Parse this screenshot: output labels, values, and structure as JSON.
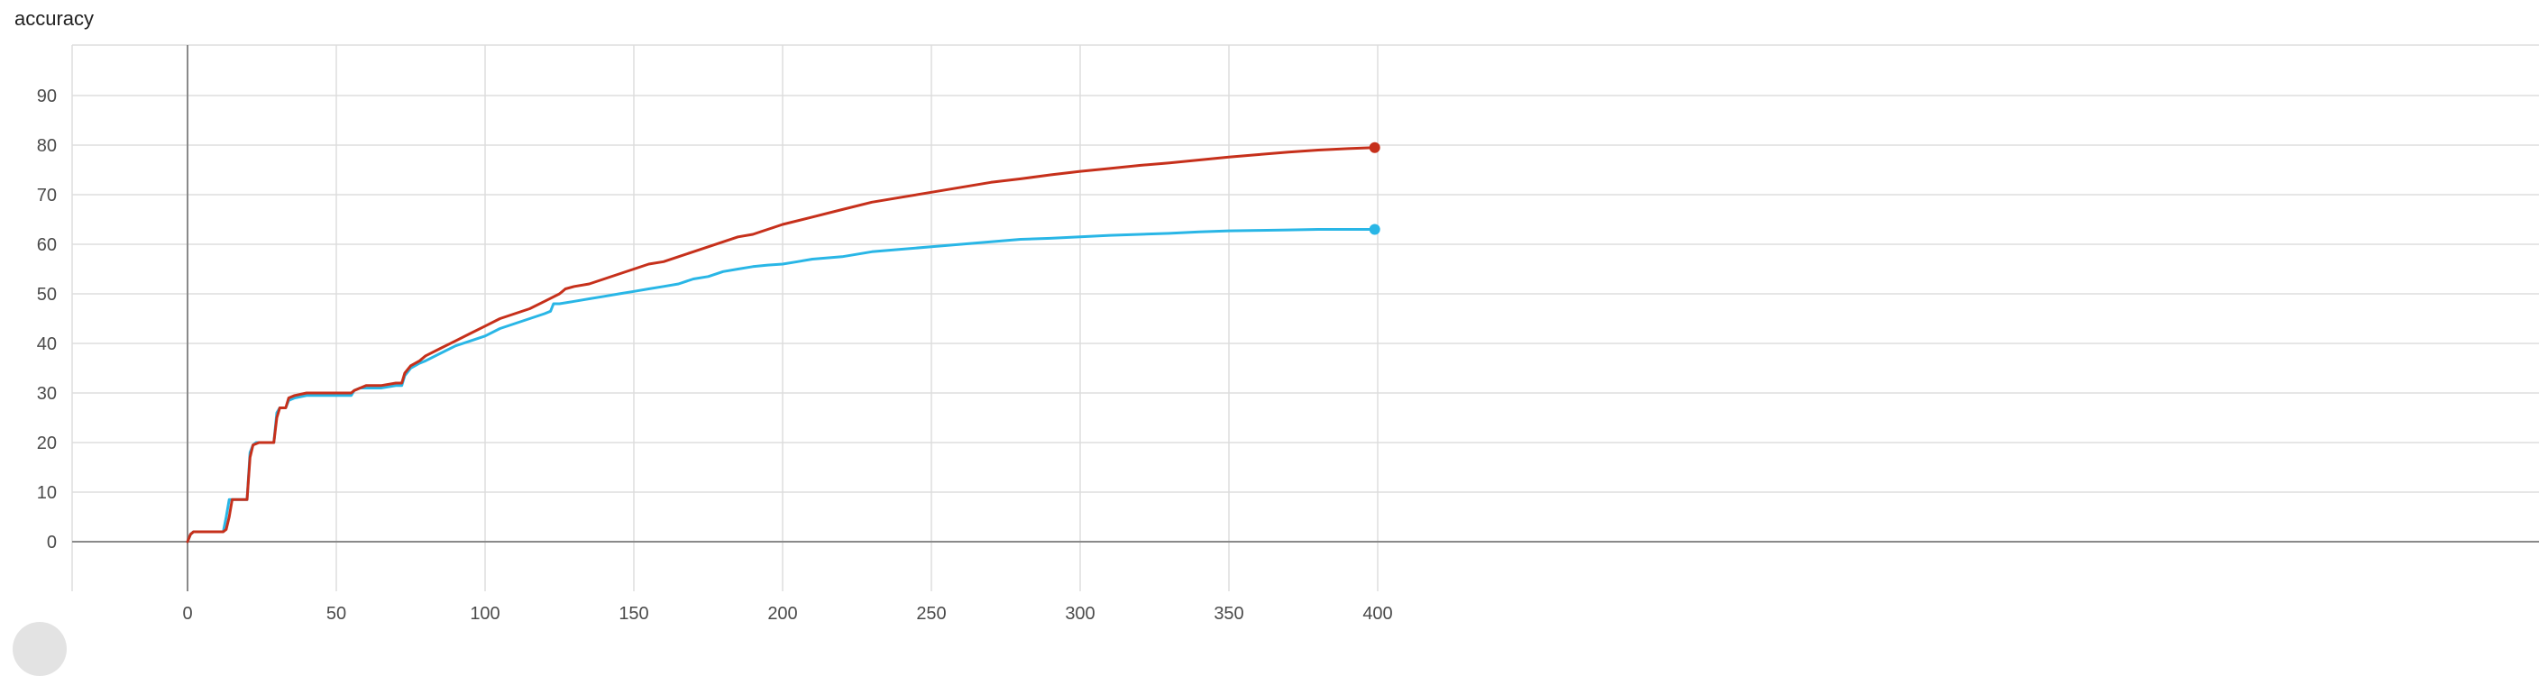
{
  "chart_data": {
    "type": "line",
    "title": "accuracy",
    "xlabel": "",
    "ylabel": "",
    "xlim": [
      -50,
      400
    ],
    "ylim": [
      -10,
      100
    ],
    "x_ticks": [
      0,
      50,
      100,
      150,
      200,
      250,
      300,
      350,
      400
    ],
    "y_ticks": [
      0,
      10,
      20,
      30,
      40,
      50,
      60,
      70,
      80,
      90
    ],
    "grid": true,
    "legend": "none",
    "series": [
      {
        "color": "#29b6e6",
        "x": [
          0,
          1,
          2,
          12,
          13,
          14,
          15,
          20,
          21,
          22,
          23,
          29,
          30,
          31,
          32,
          33,
          34,
          36,
          40,
          50,
          55,
          56,
          58,
          60,
          65,
          70,
          72,
          73,
          75,
          78,
          80,
          85,
          90,
          95,
          100,
          105,
          110,
          115,
          120,
          122,
          123,
          125,
          130,
          135,
          140,
          145,
          150,
          155,
          160,
          165,
          170,
          175,
          180,
          185,
          190,
          195,
          200,
          205,
          210,
          220,
          230,
          240,
          250,
          260,
          270,
          280,
          290,
          300,
          310,
          320,
          330,
          340,
          350,
          360,
          370,
          380,
          390,
          399
        ],
        "y": [
          0,
          1.5,
          2,
          2,
          5,
          8.5,
          8.5,
          8.5,
          18,
          19.5,
          20,
          20,
          26,
          27,
          27,
          27,
          28.5,
          29,
          29.5,
          29.5,
          29.5,
          30.5,
          31,
          31,
          31,
          31.5,
          31.5,
          33.5,
          35,
          36,
          36.5,
          38,
          39.5,
          40.5,
          41.5,
          43,
          44,
          45,
          46,
          46.5,
          48,
          48,
          48.5,
          49,
          49.5,
          50,
          50.5,
          51,
          51.5,
          52,
          53,
          53.5,
          54.5,
          55,
          55.5,
          55.8,
          56,
          56.5,
          57,
          57.5,
          58.5,
          59,
          59.5,
          60,
          60.5,
          61,
          61.2,
          61.5,
          61.8,
          62,
          62.2,
          62.5,
          62.7,
          62.8,
          62.9,
          63,
          63,
          63
        ]
      },
      {
        "color": "#c6301b",
        "x": [
          0,
          1,
          2,
          12,
          13,
          14,
          15,
          20,
          21,
          22,
          24,
          29,
          30,
          31,
          32,
          33,
          34,
          36,
          40,
          50,
          55,
          56,
          58,
          60,
          65,
          70,
          72,
          73,
          75,
          78,
          80,
          85,
          90,
          95,
          100,
          105,
          110,
          115,
          120,
          125,
          126,
          127,
          130,
          135,
          140,
          145,
          150,
          155,
          160,
          165,
          170,
          175,
          180,
          185,
          190,
          195,
          200,
          210,
          220,
          230,
          240,
          250,
          260,
          270,
          280,
          290,
          300,
          310,
          320,
          330,
          340,
          350,
          360,
          370,
          380,
          390,
          399
        ],
        "y": [
          0,
          1.5,
          2,
          2,
          2.5,
          5,
          8.5,
          8.5,
          17,
          19.5,
          20,
          20,
          25,
          27,
          27,
          27,
          29,
          29.5,
          30,
          30,
          30,
          30.5,
          31,
          31.5,
          31.5,
          32,
          32,
          34,
          35.5,
          36.5,
          37.5,
          39,
          40.5,
          42,
          43.5,
          45,
          46,
          47,
          48.5,
          50,
          50.5,
          51,
          51.5,
          52,
          53,
          54,
          55,
          56,
          56.5,
          57.5,
          58.5,
          59.5,
          60.5,
          61.5,
          62,
          63,
          64,
          65.5,
          67,
          68.5,
          69.5,
          70.5,
          71.5,
          72.5,
          73.2,
          74,
          74.7,
          75.3,
          75.9,
          76.4,
          77,
          77.6,
          78.1,
          78.6,
          79,
          79.3,
          79.5
        ]
      }
    ]
  },
  "title_text": "accuracy"
}
